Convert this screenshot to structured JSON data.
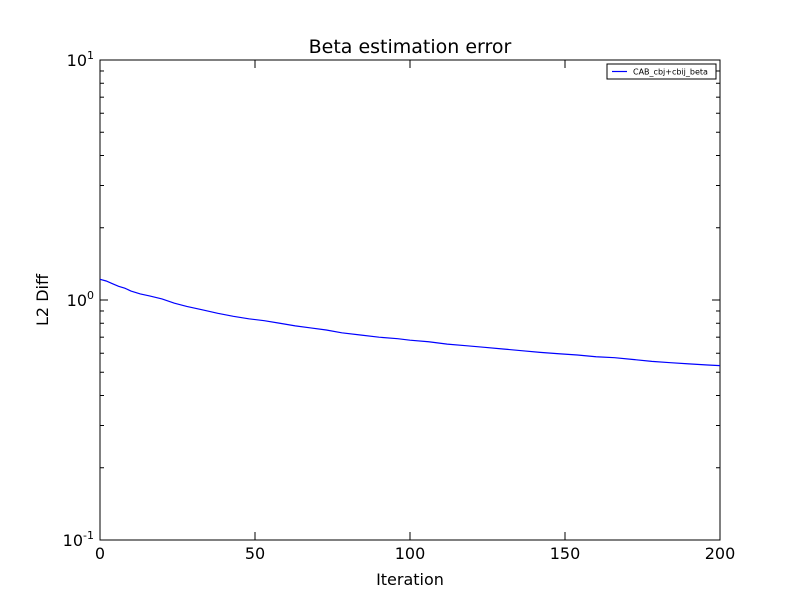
{
  "chart_data": {
    "type": "line",
    "title": "Beta estimation error",
    "xlabel": "Iteration",
    "ylabel": "L2 Diff",
    "xlim": [
      0,
      200
    ],
    "ylim": [
      0.1,
      10
    ],
    "yscale": "log",
    "grid": false,
    "legend_position": "top-right",
    "x_ticks": [
      {
        "value": 0,
        "label": "0"
      },
      {
        "value": 50,
        "label": "50"
      },
      {
        "value": 100,
        "label": "100"
      },
      {
        "value": 150,
        "label": "150"
      },
      {
        "value": 200,
        "label": "200"
      }
    ],
    "y_ticks": [
      {
        "value": 0.1,
        "base": "10",
        "exp": "-1"
      },
      {
        "value": 1,
        "base": "10",
        "exp": "0"
      },
      {
        "value": 10,
        "base": "10",
        "exp": "1"
      }
    ],
    "series": [
      {
        "name": "CAB_cbj+cbij_beta",
        "color": "#0000ff",
        "x": [
          0,
          2,
          4,
          6,
          8,
          10,
          13,
          16,
          20,
          24,
          28,
          33,
          38,
          43,
          48,
          53,
          58,
          63,
          68,
          73,
          78,
          84,
          90,
          96,
          100,
          106,
          112,
          118,
          124,
          130,
          136,
          142,
          148,
          154,
          160,
          166,
          172,
          178,
          184,
          190,
          196,
          200
        ],
        "y": [
          1.22,
          1.2,
          1.17,
          1.14,
          1.12,
          1.09,
          1.06,
          1.04,
          1.01,
          0.97,
          0.94,
          0.91,
          0.88,
          0.855,
          0.835,
          0.82,
          0.8,
          0.78,
          0.765,
          0.75,
          0.73,
          0.715,
          0.7,
          0.69,
          0.68,
          0.67,
          0.655,
          0.645,
          0.635,
          0.625,
          0.615,
          0.605,
          0.597,
          0.59,
          0.58,
          0.575,
          0.565,
          0.555,
          0.548,
          0.542,
          0.536,
          0.533
        ]
      }
    ]
  }
}
